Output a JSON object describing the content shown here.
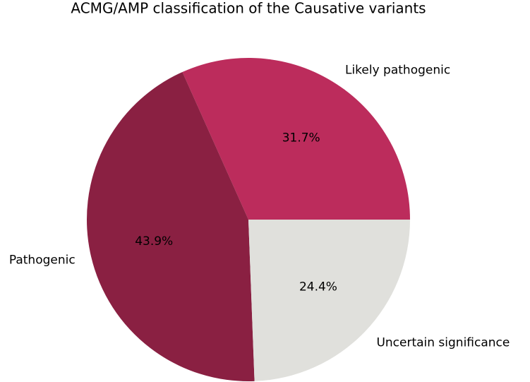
{
  "chart_data": {
    "type": "pie",
    "title": "ACMG/AMP classification of the Causative variants",
    "categories": [
      "Likely pathogenic",
      "Pathogenic",
      "Uncertain significance"
    ],
    "values": [
      31.7,
      43.9,
      24.4
    ],
    "value_labels": [
      "31.7%",
      "43.9%",
      "24.4%"
    ],
    "colors": [
      "#bc2c5c",
      "#8a2042",
      "#e0e0dc"
    ]
  }
}
